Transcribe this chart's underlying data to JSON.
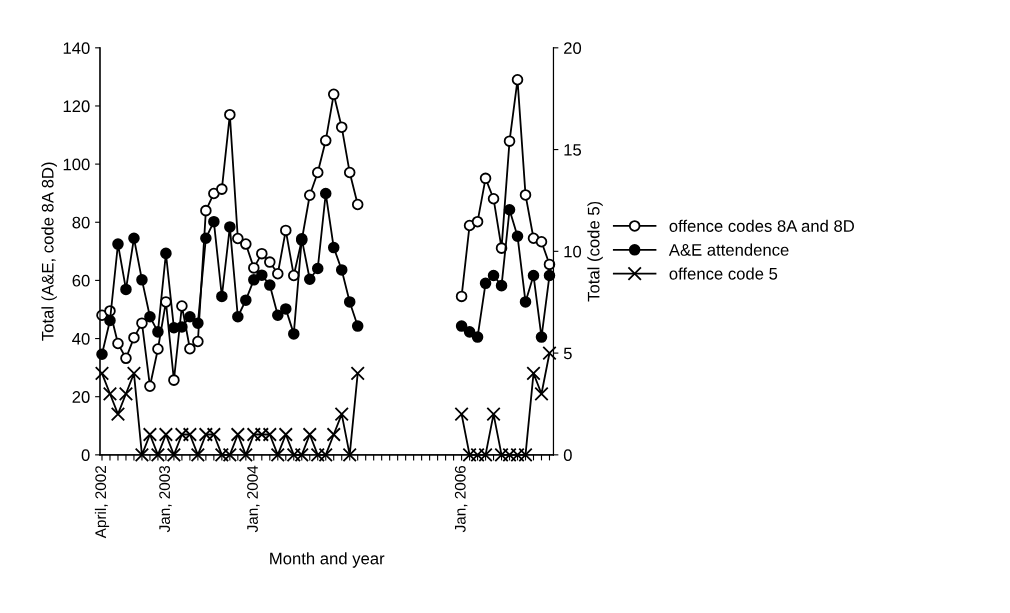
{
  "chart_data": {
    "type": "line",
    "xlabel": "Month and year",
    "ylabel": "Total (A&E, code 8A 8D)",
    "y2label": "Total (code 5)",
    "categories": [
      "April, 2002",
      null,
      null,
      null,
      null,
      null,
      null,
      null,
      "Jan, 2003",
      null,
      null,
      null,
      null,
      null,
      null,
      null,
      null,
      null,
      null,
      "Jan, 2004",
      null,
      null,
      null,
      null,
      null,
      null,
      null,
      null,
      null,
      null,
      null,
      null,
      null,
      null,
      null,
      null,
      null,
      null,
      null,
      null,
      null,
      null,
      null,
      null,
      null,
      "Jan, 2006",
      null,
      null,
      null,
      null,
      null,
      null,
      null,
      null,
      null,
      null,
      null
    ],
    "series": [
      {
        "name": "offence codes 8A and 8D",
        "color": "#000000",
        "marker": "circle",
        "values": [
          48.0,
          49.5,
          38.3,
          33.2,
          40.3,
          45.3,
          23.6,
          36.4,
          52.6,
          25.7,
          51.2,
          36.5,
          39.0,
          84.0,
          89.9,
          91.4,
          117,
          74.4,
          72.5,
          64.3,
          69.2,
          66.3,
          62.3,
          77.2,
          61.7,
          73.8,
          89.3,
          97.1,
          108.1,
          124,
          112.7,
          97.1,
          86.1,
          null,
          null,
          null,
          null,
          null,
          null,
          null,
          null,
          null,
          null,
          null,
          null,
          54.5,
          78.9,
          80.2,
          95.1,
          88.1,
          71.1,
          107.9,
          129,
          89.4,
          74.5,
          73.3,
          65.5
        ]
      },
      {
        "name": "A&E attendence",
        "color": "#000000",
        "marker": "circle",
        "values": [
          34.6,
          46.2,
          72.5,
          56.9,
          74.5,
          60.2,
          47.5,
          42.3,
          69.3,
          43.7,
          44.0,
          47.5,
          45.3,
          74.5,
          80.2,
          54.5,
          78.4,
          47.5,
          53.2,
          60.2,
          61.8,
          58.4,
          48.0,
          50.2,
          41.6,
          74.3,
          60.4,
          64.1,
          89.9,
          71.3,
          63.6,
          52.6,
          44.3,
          null,
          null,
          null,
          null,
          null,
          null,
          null,
          null,
          null,
          null,
          null,
          null,
          44.3,
          42.3,
          40.5,
          59.0,
          61.7,
          58.2,
          84.3,
          75.2,
          52.6,
          61.7,
          40.5,
          61.7
        ]
      },
      {
        "name": "offence code 5",
        "color": "#000000",
        "marker": "cross",
        "axis": "y2",
        "values": [
          4,
          3,
          2,
          3,
          4,
          0,
          1,
          0,
          1,
          0,
          1,
          1,
          0,
          1,
          1,
          0,
          0,
          1,
          0,
          1,
          1,
          1,
          0,
          1,
          0,
          0,
          1,
          0,
          0,
          1,
          2,
          0,
          4,
          null,
          null,
          null,
          null,
          null,
          null,
          null,
          null,
          null,
          null,
          null,
          null,
          2,
          0,
          0,
          0,
          2,
          0,
          0,
          0,
          0,
          4,
          3,
          5
        ]
      }
    ],
    "ylim": [
      0,
      140
    ],
    "yticks": [
      0,
      20,
      40,
      60,
      80,
      100,
      120,
      140
    ],
    "y2lim": [
      0,
      20
    ],
    "y2ticks": [
      0,
      5,
      10,
      15,
      20
    ],
    "line_style": "solid",
    "grid": false,
    "legend": "right"
  }
}
